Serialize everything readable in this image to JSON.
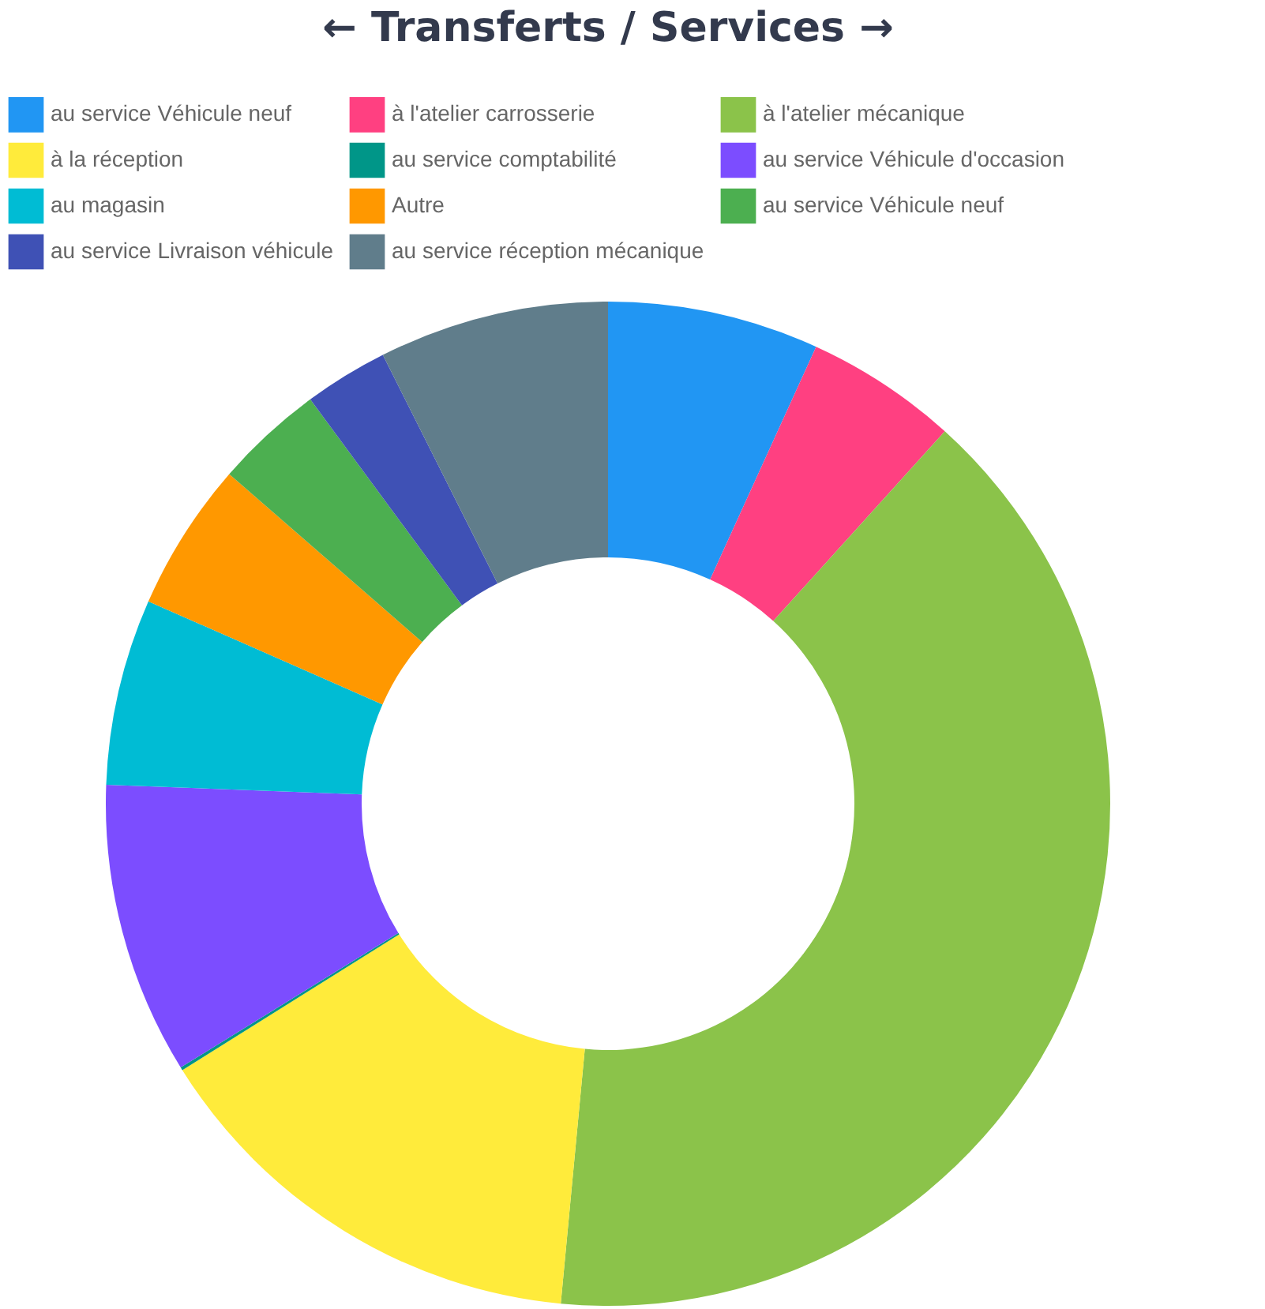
{
  "chart_data": {
    "type": "donut",
    "title": "←   Transferts / Services   →",
    "categories": [
      "au service Véhicule neuf",
      "à l'atelier carrosserie",
      "à l'atelier mécanique",
      "à la réception",
      "au service comptabilité",
      "au service Véhicule d'occasion",
      "au magasin",
      "Autre",
      "au service Véhicule neuf",
      "au service Livraison véhicule",
      "au service réception mécanique"
    ],
    "values": [
      6.8,
      4.9,
      39.8,
      14.6,
      0.1,
      9.4,
      6.0,
      4.8,
      3.5,
      2.7,
      7.4
    ],
    "colors": [
      "#2196f3",
      "#ff4081",
      "#8bc34a",
      "#ffeb3b",
      "#009688",
      "#7c4dff",
      "#00bcd4",
      "#ff9800",
      "#4caf50",
      "#3f51b5",
      "#607d8b"
    ],
    "legend": "top"
  }
}
